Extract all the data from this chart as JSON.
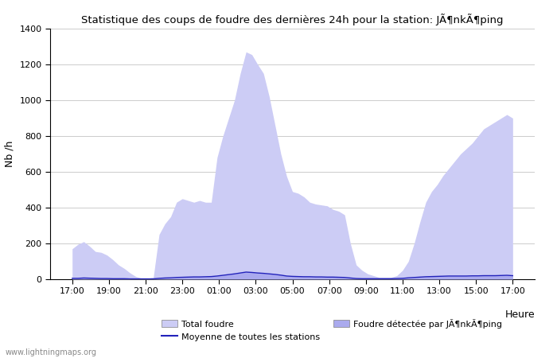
{
  "title": "Statistique des coups de foudre des dernières 24h pour la station: JÃ¶nkÃ¶ping",
  "ylabel": "Nb /h",
  "ylim": [
    0,
    1400
  ],
  "yticks": [
    0,
    200,
    400,
    600,
    800,
    1000,
    1200,
    1400
  ],
  "x_labels": [
    "17:00",
    "19:00",
    "21:00",
    "23:00",
    "01:00",
    "03:00",
    "05:00",
    "07:00",
    "09:00",
    "11:00",
    "13:00",
    "15:00",
    "17:00"
  ],
  "background_color": "#ffffff",
  "fill_color_total": "#ccccf5",
  "fill_color_local": "#aaaaee",
  "line_color_mean": "#2222bb",
  "grid_color": "#cccccc",
  "watermark": "www.lightningmaps.org",
  "legend_total": "Total foudre",
  "legend_local": "Foudre détectée par JÃ¶nkÃ¶ping",
  "legend_mean": "Moyenne de toutes les stations",
  "xlabel_heure": "Heure",
  "total_foudre": [
    170,
    195,
    210,
    185,
    155,
    150,
    135,
    110,
    80,
    60,
    35,
    15,
    5,
    5,
    10,
    250,
    310,
    350,
    430,
    450,
    440,
    430,
    440,
    430,
    430,
    680,
    800,
    900,
    1000,
    1150,
    1270,
    1255,
    1200,
    1150,
    1020,
    860,
    700,
    575,
    490,
    480,
    460,
    430,
    420,
    415,
    410,
    390,
    380,
    360,
    200,
    80,
    50,
    30,
    20,
    10,
    10,
    10,
    20,
    50,
    100,
    200,
    320,
    430,
    490,
    530,
    580,
    620,
    660,
    700,
    730,
    760,
    800,
    840,
    860,
    880,
    900,
    920,
    900
  ],
  "mean_foudre": [
    5,
    5,
    7,
    6,
    5,
    4,
    4,
    3,
    3,
    3,
    2,
    2,
    2,
    2,
    2,
    5,
    7,
    8,
    10,
    11,
    12,
    13,
    13,
    14,
    15,
    18,
    22,
    26,
    30,
    35,
    40,
    38,
    35,
    33,
    30,
    27,
    23,
    18,
    16,
    15,
    14,
    14,
    13,
    13,
    12,
    12,
    11,
    10,
    7,
    4,
    3,
    3,
    3,
    3,
    3,
    3,
    4,
    5,
    8,
    10,
    12,
    14,
    15,
    16,
    17,
    18,
    18,
    18,
    18,
    19,
    19,
    20,
    20,
    20,
    21,
    22,
    20
  ]
}
